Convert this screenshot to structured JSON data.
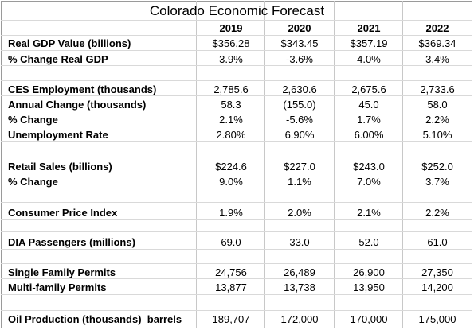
{
  "title": "Colorado Economic Forecast",
  "years": [
    "2019",
    "2020",
    "2021",
    "2022"
  ],
  "rows": [
    {
      "label": "Real GDP Value (billions)",
      "values": [
        "$356.28",
        "$343.45",
        "$357.19",
        "$369.34"
      ]
    },
    {
      "label": "% Change Real GDP",
      "values": [
        "3.9%",
        "-3.6%",
        "4.0%",
        "3.4%"
      ]
    },
    {
      "label": "CES Employment (thousands)",
      "values": [
        "2,785.6",
        "2,630.6",
        "2,675.6",
        "2,733.6"
      ]
    },
    {
      "label": "Annual Change (thousands)",
      "values": [
        "58.3",
        "(155.0)",
        "45.0",
        "58.0"
      ]
    },
    {
      "label": "% Change",
      "values": [
        "2.1%",
        "-5.6%",
        "1.7%",
        "2.2%"
      ]
    },
    {
      "label": "Unemployment Rate",
      "values": [
        "2.80%",
        "6.90%",
        "6.00%",
        "5.10%"
      ]
    },
    {
      "label": "Retail Sales (billions)",
      "values": [
        "$224.6",
        "$227.0",
        "$243.0",
        "$252.0"
      ]
    },
    {
      "label": "% Change",
      "values": [
        "9.0%",
        "1.1%",
        "7.0%",
        "3.7%"
      ]
    },
    {
      "label": "Consumer Price Index",
      "values": [
        "1.9%",
        "2.0%",
        "2.1%",
        "2.2%"
      ]
    },
    {
      "label": "DIA Passengers (millions)",
      "values": [
        "69.0",
        "33.0",
        "52.0",
        "61.0"
      ]
    },
    {
      "label": "Single Family Permits",
      "values": [
        "24,756",
        "26,489",
        "26,900",
        "27,350"
      ]
    },
    {
      "label": "Multi-family Permits",
      "values": [
        "13,877",
        "13,738",
        "13,950",
        "14,200"
      ]
    },
    {
      "label": "Oil Production (thousands)  barrels",
      "values": [
        "189,707",
        "172,000",
        "170,000",
        "175,000"
      ]
    }
  ]
}
